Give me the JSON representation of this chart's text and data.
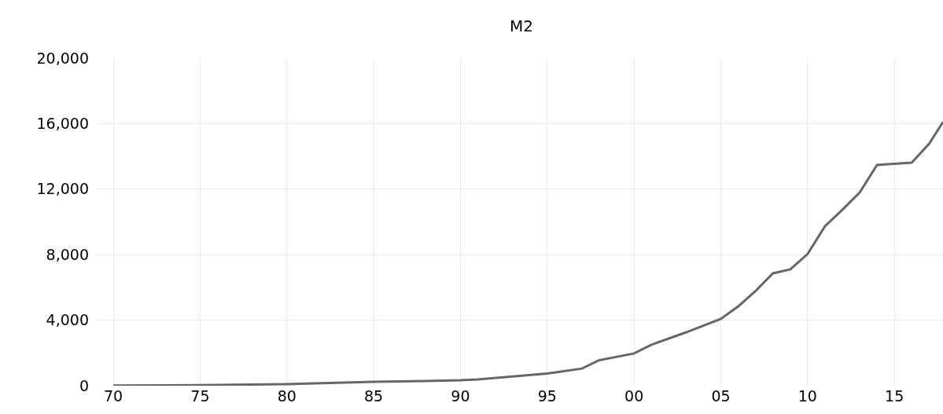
{
  "chart_data": {
    "type": "line",
    "title": "M2",
    "x": [
      1970,
      1973,
      1975,
      1977,
      1980,
      1982,
      1985,
      1988,
      1990,
      1991,
      1995,
      1997,
      1998,
      2000,
      2001,
      2003,
      2005,
      2006,
      2007,
      2008,
      2009,
      2010,
      2011,
      2012,
      2013,
      2014,
      2015,
      2016,
      2017,
      2017.8
    ],
    "series": [
      {
        "color": "#666666",
        "values": [
          10,
          20,
          40,
          60,
          100,
          150,
          240,
          290,
          330,
          380,
          740,
          1050,
          1560,
          1970,
          2500,
          3260,
          4080,
          4840,
          5780,
          6860,
          7100,
          8040,
          9740,
          10740,
          11800,
          13480,
          13550,
          13620,
          14770,
          16100
        ]
      }
    ],
    "xlim": [
      1969,
      2017.8
    ],
    "xticks": [
      {
        "value": 1970,
        "label": "70"
      },
      {
        "value": 1975,
        "label": "75"
      },
      {
        "value": 1980,
        "label": "80"
      },
      {
        "value": 1985,
        "label": "85"
      },
      {
        "value": 1990,
        "label": "90"
      },
      {
        "value": 1995,
        "label": "95"
      },
      {
        "value": 2000,
        "label": "00"
      },
      {
        "value": 2005,
        "label": "05"
      },
      {
        "value": 2010,
        "label": "10"
      },
      {
        "value": 2015,
        "label": "15"
      }
    ],
    "ylim": [
      0,
      20000
    ],
    "yticks": [
      {
        "value": 0,
        "label": "0"
      },
      {
        "value": 4000,
        "label": "4,000"
      },
      {
        "value": 8000,
        "label": "8,000"
      },
      {
        "value": 12000,
        "label": "12,000"
      },
      {
        "value": 16000,
        "label": "16,000"
      },
      {
        "value": 20000,
        "label": "20,000"
      }
    ],
    "grid": true,
    "legend": false,
    "marker": "none",
    "line_style": "solid"
  }
}
